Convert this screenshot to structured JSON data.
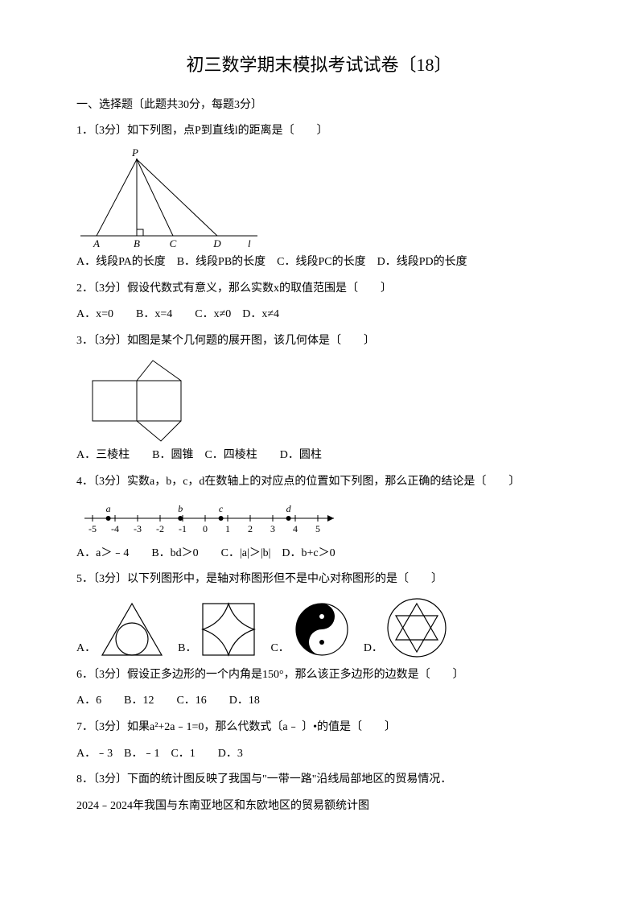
{
  "title": "初三数学期末模拟考试试卷〔18〕",
  "section1": "一、选择题〔此题共30分，每题3分〕",
  "q1": {
    "stem": "1．〔3分〕如下列图，点P到直线l的距离是〔　　〕",
    "opts": "A．线段PA的长度　B．线段PB的长度　C．线段PC的长度　D．线段PD的长度",
    "fig": {
      "P": "P",
      "A": "A",
      "B": "B",
      "C": "C",
      "D": "D",
      "l": "l"
    }
  },
  "q2": {
    "stem": "2．〔3分〕假设代数式有意义，那么实数x的取值范围是〔　　〕",
    "opts": "A．x=0　　B．x=4　　C．x≠0　D．x≠4"
  },
  "q3": {
    "stem": "3．〔3分〕如图是某个几何题的展开图，该几何体是〔　　〕",
    "opts": "A．三棱柱　　B．圆锥　C．四棱柱　　D．圆柱"
  },
  "q4": {
    "stem": "4．〔3分〕实数a，b，c，d在数轴上的对应点的位置如下列图，那么正确的结论是〔　　〕",
    "opts": "A．a＞﹣4　　B．bd＞0　　C．|a|＞|b|　D．b+c＞0",
    "numline": {
      "labels": [
        "-5",
        "-4",
        "-3",
        "-2",
        "-1",
        "0",
        "1",
        "2",
        "3",
        "4",
        "5"
      ],
      "points": [
        {
          "name": "a",
          "x": -4.3
        },
        {
          "name": "b",
          "x": -1.1
        },
        {
          "name": "c",
          "x": 0.7
        },
        {
          "name": "d",
          "x": 3.7
        }
      ]
    }
  },
  "q5": {
    "stem": "5．〔3分〕以下列图形中，是轴对称图形但不是中心对称图形的是〔　　〕"
  },
  "q6": {
    "stem": "6．〔3分〕假设正多边形的一个内角是150°，那么该正多边形的边数是〔　　〕",
    "opts": "A．6　　B．12　　C．16　　D．18"
  },
  "q7": {
    "stem": "7．〔3分〕如果a²+2a﹣1=0，那么代数式〔a﹣ 〕•的值是〔　　〕",
    "opts": "A．﹣3　B．﹣1　C．1　　D．3"
  },
  "q8": {
    "stem": "8．〔3分〕下面的统计图反映了我国与\"一带一路\"沿线局部地区的贸易情况．",
    "sub": "2024﹣2024年我国与东南亚地区和东欧地区的贸易额统计图"
  }
}
